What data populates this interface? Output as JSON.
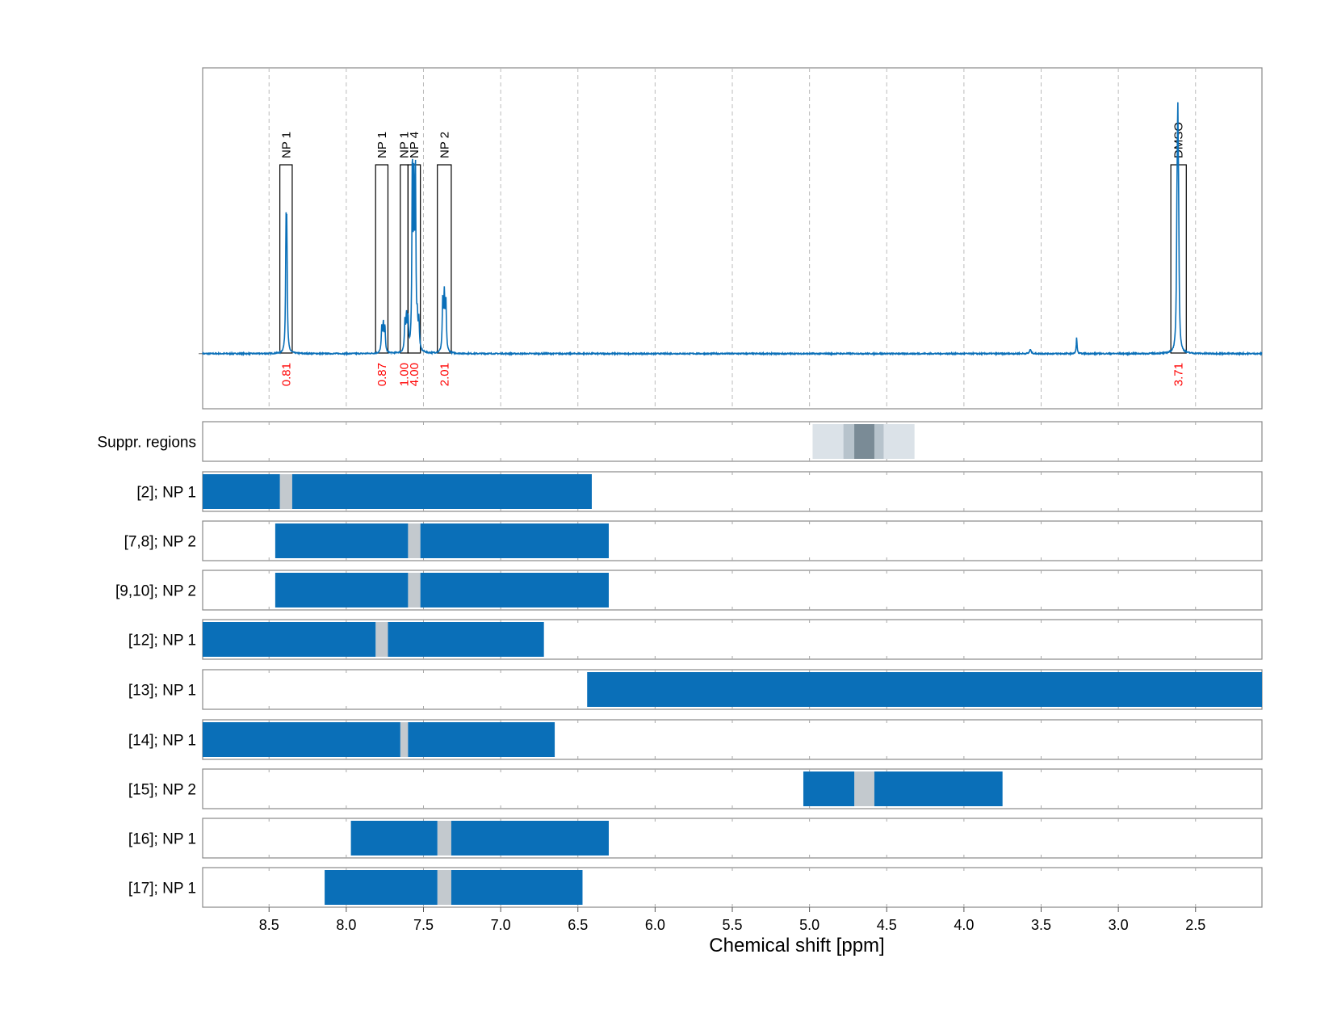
{
  "chart_data": {
    "type": "nmr_spectrum_with_range_bars",
    "xlabel": "Chemical shift [ppm]",
    "xlim": [
      8.93,
      2.07
    ],
    "x_ticks": [
      "8.5",
      "8.0",
      "7.5",
      "7.0",
      "6.5",
      "6.0",
      "5.5",
      "5.0",
      "4.5",
      "4.0",
      "3.5",
      "3.0",
      "2.5"
    ],
    "grid": true,
    "colors": {
      "spectrum": "#0a6fb8",
      "bar": "#0a6fb8",
      "gap": "#c3c9ce",
      "integral_text": "#ff0000",
      "supp_light": "#dbe2e8",
      "supp_mid": "#b7c3cc",
      "supp_dark": "#7a8b96",
      "grid": "#bbbbbb"
    },
    "spectrum": {
      "baseline": 0.0,
      "ylim": [
        -0.27,
        1.4
      ],
      "peaks": [
        {
          "ppm": 8.39,
          "h": 0.52,
          "w": 0.0035
        },
        {
          "ppm": 8.385,
          "h": 0.5,
          "w": 0.0035
        },
        {
          "ppm": 7.77,
          "h": 0.12,
          "w": 0.004
        },
        {
          "ppm": 7.76,
          "h": 0.13,
          "w": 0.004
        },
        {
          "ppm": 7.75,
          "h": 0.12,
          "w": 0.004
        },
        {
          "ppm": 7.62,
          "h": 0.14,
          "w": 0.004
        },
        {
          "ppm": 7.61,
          "h": 0.16,
          "w": 0.004
        },
        {
          "ppm": 7.6,
          "h": 0.15,
          "w": 0.004
        },
        {
          "ppm": 7.572,
          "h": 0.9,
          "w": 0.0035
        },
        {
          "ppm": 7.562,
          "h": 0.74,
          "w": 0.0035
        },
        {
          "ppm": 7.552,
          "h": 0.84,
          "w": 0.0035
        },
        {
          "ppm": 7.54,
          "h": 0.13,
          "w": 0.004
        },
        {
          "ppm": 7.53,
          "h": 0.14,
          "w": 0.004
        },
        {
          "ppm": 7.375,
          "h": 0.25,
          "w": 0.004
        },
        {
          "ppm": 7.365,
          "h": 0.26,
          "w": 0.004
        },
        {
          "ppm": 7.355,
          "h": 0.24,
          "w": 0.004
        },
        {
          "ppm": 3.57,
          "h": 0.02,
          "w": 0.006
        },
        {
          "ppm": 3.27,
          "h": 0.08,
          "w": 0.003
        },
        {
          "ppm": 2.62,
          "h": 0.52,
          "w": 0.004
        },
        {
          "ppm": 2.615,
          "h": 0.84,
          "w": 0.0035
        },
        {
          "ppm": 2.61,
          "h": 0.52,
          "w": 0.004
        }
      ],
      "boxes": [
        {
          "label": "NP 1",
          "from": 8.43,
          "to": 8.35,
          "integral": "0.81"
        },
        {
          "label": "NP 1",
          "from": 7.81,
          "to": 7.73,
          "integral": "0.87"
        },
        {
          "label": "NP 1",
          "from": 7.65,
          "to": 7.6,
          "integral": "1.00"
        },
        {
          "label": "NP 4",
          "from": 7.6,
          "to": 7.52,
          "integral": "4.00"
        },
        {
          "label": "NP 2",
          "from": 7.41,
          "to": 7.32,
          "integral": "2.01"
        },
        {
          "label": "DMSO",
          "from": 2.66,
          "to": 2.56,
          "integral": "3.71"
        }
      ]
    },
    "suppression": {
      "label": "Suppr. regions",
      "bands": [
        {
          "from": 4.98,
          "to": 4.32,
          "level": "light"
        },
        {
          "from": 4.78,
          "to": 4.52,
          "level": "mid"
        },
        {
          "from": 4.71,
          "to": 4.58,
          "level": "dark"
        }
      ]
    },
    "rows": [
      {
        "label": "[2]; NP 1",
        "segments": [
          [
            8.93,
            8.43
          ],
          [
            8.35,
            6.41
          ]
        ],
        "gaps": [
          [
            8.43,
            8.35
          ]
        ]
      },
      {
        "label": "[7,8]; NP 2",
        "segments": [
          [
            8.46,
            7.6
          ],
          [
            7.52,
            6.3
          ]
        ],
        "gaps": [
          [
            7.6,
            7.52
          ]
        ]
      },
      {
        "label": "[9,10]; NP 2",
        "segments": [
          [
            8.46,
            7.6
          ],
          [
            7.52,
            6.3
          ]
        ],
        "gaps": [
          [
            7.6,
            7.52
          ]
        ]
      },
      {
        "label": "[12]; NP 1",
        "segments": [
          [
            8.93,
            7.81
          ],
          [
            7.73,
            6.72
          ]
        ],
        "gaps": [
          [
            7.81,
            7.73
          ]
        ]
      },
      {
        "label": "[13]; NP 1",
        "segments": [
          [
            6.44,
            2.07
          ]
        ],
        "gaps": []
      },
      {
        "label": "[14]; NP 1",
        "segments": [
          [
            8.93,
            7.65
          ],
          [
            7.6,
            6.65
          ]
        ],
        "gaps": [
          [
            7.65,
            7.6
          ]
        ]
      },
      {
        "label": "[15]; NP 2",
        "segments": [
          [
            5.04,
            4.71
          ],
          [
            4.58,
            3.75
          ]
        ],
        "gaps": [
          [
            4.71,
            4.58
          ]
        ]
      },
      {
        "label": "[16]; NP 1",
        "segments": [
          [
            7.97,
            7.41
          ],
          [
            7.32,
            6.3
          ]
        ],
        "gaps": [
          [
            7.41,
            7.32
          ]
        ]
      },
      {
        "label": "[17]; NP 1",
        "segments": [
          [
            8.14,
            7.41
          ],
          [
            7.32,
            6.47
          ]
        ],
        "gaps": [
          [
            7.41,
            7.32
          ]
        ]
      }
    ]
  }
}
